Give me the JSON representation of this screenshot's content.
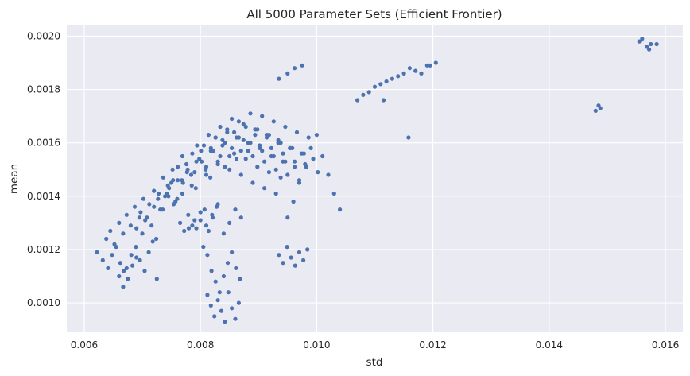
{
  "chart_data": {
    "type": "scatter",
    "title": "All 5000 Parameter Sets (Efficient Frontier)",
    "xlabel": "std",
    "ylabel": "mean",
    "xlim": [
      0.0057,
      0.0163
    ],
    "ylim": [
      0.00089,
      0.00204
    ],
    "xticks": [
      0.006,
      0.008,
      0.01,
      0.012,
      0.014,
      0.016
    ],
    "xtick_labels": [
      "0.006",
      "0.008",
      "0.010",
      "0.012",
      "0.014",
      "0.016"
    ],
    "yticks": [
      0.001,
      0.0012,
      0.0014,
      0.0016,
      0.0018,
      0.002
    ],
    "ytick_labels": [
      "0.0010",
      "0.0012",
      "0.0014",
      "0.0016",
      "0.0018",
      "0.0020"
    ],
    "grid": true,
    "legend": "none",
    "colors": {
      "background": "#eaeaf2",
      "grid": "#ffffff",
      "marker": "#4c72b0"
    },
    "point_count": 5000,
    "series": [
      {
        "x": [
          0.00622,
          0.00632,
          0.00641,
          0.00648,
          0.00655,
          0.00662,
          0.00668,
          0.00675,
          0.00683,
          0.0069,
          0.00638,
          0.00645,
          0.00652,
          0.0066,
          0.00667,
          0.00673,
          0.0068,
          0.00687,
          0.00695,
          0.00702,
          0.0066,
          0.00667,
          0.00673,
          0.00681,
          0.00689,
          0.00696,
          0.00704,
          0.00711,
          0.00718,
          0.00725,
          0.0069,
          0.00697,
          0.00705,
          0.00712,
          0.0072,
          0.00727,
          0.00735,
          0.00742,
          0.0075,
          0.00757,
          0.007,
          0.00708,
          0.00716,
          0.00724,
          0.00731,
          0.00739,
          0.00746,
          0.00754,
          0.00761,
          0.00769,
          0.0072,
          0.00728,
          0.00736,
          0.00744,
          0.00752,
          0.0076,
          0.00768,
          0.00776,
          0.00784,
          0.00792,
          0.00745,
          0.00753,
          0.00761,
          0.00769,
          0.00777,
          0.00785,
          0.00793,
          0.00801,
          0.00809,
          0.00817,
          0.0077,
          0.00778,
          0.00786,
          0.00794,
          0.00802,
          0.0081,
          0.00818,
          0.00826,
          0.00834,
          0.00842,
          0.0079,
          0.00798,
          0.00806,
          0.00814,
          0.00822,
          0.0083,
          0.00838,
          0.00846,
          0.00854,
          0.00862,
          0.0081,
          0.00818,
          0.00826,
          0.00834,
          0.00842,
          0.0085,
          0.00858,
          0.00866,
          0.00874,
          0.00882,
          0.0083,
          0.00838,
          0.00846,
          0.00854,
          0.00862,
          0.0087,
          0.00878,
          0.00886,
          0.00894,
          0.00902,
          0.0085,
          0.00858,
          0.00866,
          0.00874,
          0.00882,
          0.0089,
          0.00898,
          0.00906,
          0.00914,
          0.00922,
          0.0087,
          0.00878,
          0.00886,
          0.00894,
          0.00902,
          0.0091,
          0.00918,
          0.00926,
          0.00934,
          0.00942,
          0.0089,
          0.00898,
          0.00906,
          0.00914,
          0.00922,
          0.0093,
          0.00938,
          0.00946,
          0.00954,
          0.00962,
          0.0091,
          0.00918,
          0.00926,
          0.00934,
          0.00942,
          0.0095,
          0.00958,
          0.00966,
          0.00974,
          0.00982,
          0.0093,
          0.00938,
          0.00946,
          0.00954,
          0.00962,
          0.0097,
          0.00978,
          0.00986,
          0.00994,
          0.01002,
          0.0095,
          0.0096,
          0.0097,
          0.0098,
          0.0099,
          0.01,
          0.0101,
          0.0102,
          0.0103,
          0.0104,
          0.0078,
          0.0079,
          0.008,
          0.0081,
          0.0082,
          0.0083,
          0.0084,
          0.0085,
          0.0086,
          0.0087,
          0.00765,
          0.00772,
          0.00779,
          0.00786,
          0.00793,
          0.008,
          0.00807,
          0.00814,
          0.00821,
          0.00828,
          0.00805,
          0.00812,
          0.00819,
          0.00826,
          0.00833,
          0.0084,
          0.00847,
          0.00854,
          0.00861,
          0.00868,
          0.00812,
          0.00818,
          0.00824,
          0.0083,
          0.00836,
          0.00842,
          0.00848,
          0.00854,
          0.0086,
          0.00866,
          0.00935,
          0.00942,
          0.00949,
          0.00956,
          0.00963,
          0.0097,
          0.00977,
          0.00984,
          0.0107,
          0.0109,
          0.0111,
          0.0113,
          0.0115,
          0.0117,
          0.0119,
          0.01205,
          0.0108,
          0.011,
          0.0112,
          0.0114,
          0.0116,
          0.0118,
          0.01195,
          0.01115,
          0.01158,
          0.00935,
          0.0095,
          0.00962,
          0.00975,
          0.0148,
          0.01485,
          0.01488,
          0.01555,
          0.0156,
          0.01568,
          0.01572,
          0.01575,
          0.01585
        ],
        "y": [
          0.00119,
          0.00116,
          0.00113,
          0.00118,
          0.00121,
          0.00115,
          0.00112,
          0.00109,
          0.00114,
          0.00117,
          0.00124,
          0.00127,
          0.00122,
          0.0013,
          0.00126,
          0.00133,
          0.00129,
          0.00136,
          0.00132,
          0.00139,
          0.0011,
          0.00106,
          0.00113,
          0.00118,
          0.00121,
          0.00116,
          0.00112,
          0.00119,
          0.00123,
          0.00109,
          0.00128,
          0.00134,
          0.00131,
          0.00137,
          0.00142,
          0.00139,
          0.00135,
          0.00141,
          0.00145,
          0.00138,
          0.00126,
          0.00132,
          0.00129,
          0.00124,
          0.00135,
          0.0014,
          0.00143,
          0.00137,
          0.00146,
          0.00141,
          0.00136,
          0.00141,
          0.00147,
          0.00144,
          0.0015,
          0.00139,
          0.00146,
          0.00152,
          0.00148,
          0.00143,
          0.0014,
          0.00146,
          0.00151,
          0.00155,
          0.00149,
          0.00144,
          0.00153,
          0.00157,
          0.0015,
          0.00147,
          0.00145,
          0.0015,
          0.00156,
          0.00159,
          0.00153,
          0.00148,
          0.00158,
          0.00162,
          0.00155,
          0.00151,
          0.00149,
          0.00154,
          0.00159,
          0.00163,
          0.00157,
          0.00152,
          0.00161,
          0.00165,
          0.00158,
          0.00154,
          0.00151,
          0.00157,
          0.00162,
          0.00166,
          0.0016,
          0.00155,
          0.00164,
          0.00168,
          0.00161,
          0.00157,
          0.00153,
          0.00159,
          0.00164,
          0.00169,
          0.00162,
          0.00157,
          0.00166,
          0.00171,
          0.00163,
          0.00159,
          0.0015,
          0.00156,
          0.00162,
          0.00167,
          0.0016,
          0.00155,
          0.00165,
          0.0017,
          0.00163,
          0.00158,
          0.00148,
          0.00154,
          0.0016,
          0.00165,
          0.00158,
          0.00153,
          0.00163,
          0.00168,
          0.00161,
          0.00156,
          0.00145,
          0.00151,
          0.00157,
          0.00162,
          0.00155,
          0.0015,
          0.0016,
          0.00166,
          0.00158,
          0.00153,
          0.00143,
          0.00149,
          0.00155,
          0.0016,
          0.00153,
          0.00148,
          0.00158,
          0.00164,
          0.00156,
          0.00151,
          0.00141,
          0.00147,
          0.00153,
          0.00158,
          0.00151,
          0.00146,
          0.00156,
          0.00162,
          0.00154,
          0.00149,
          0.00132,
          0.00138,
          0.00145,
          0.00152,
          0.00158,
          0.00163,
          0.00155,
          0.00148,
          0.00141,
          0.00135,
          0.00128,
          0.00131,
          0.00134,
          0.00129,
          0.00133,
          0.00137,
          0.00126,
          0.0013,
          0.00135,
          0.00132,
          0.0013,
          0.00127,
          0.00133,
          0.00129,
          0.00128,
          0.00131,
          0.00135,
          0.00127,
          0.00132,
          0.00136,
          0.00121,
          0.00118,
          0.00112,
          0.00108,
          0.00104,
          0.0011,
          0.00115,
          0.00119,
          0.00113,
          0.00109,
          0.00103,
          0.00099,
          0.00095,
          0.00101,
          0.00097,
          0.00093,
          0.00104,
          0.00098,
          0.00094,
          0.001,
          0.00118,
          0.00115,
          0.00121,
          0.00117,
          0.00114,
          0.00119,
          0.00116,
          0.0012,
          0.00176,
          0.00179,
          0.00182,
          0.00184,
          0.00186,
          0.00187,
          0.00189,
          0.0019,
          0.00178,
          0.00181,
          0.00183,
          0.00185,
          0.00188,
          0.00186,
          0.00189,
          0.00176,
          0.00162,
          0.00184,
          0.00186,
          0.00188,
          0.00189,
          0.00172,
          0.00174,
          0.00173,
          0.00198,
          0.00199,
          0.00196,
          0.00195,
          0.00197,
          0.00197
        ]
      }
    ]
  }
}
